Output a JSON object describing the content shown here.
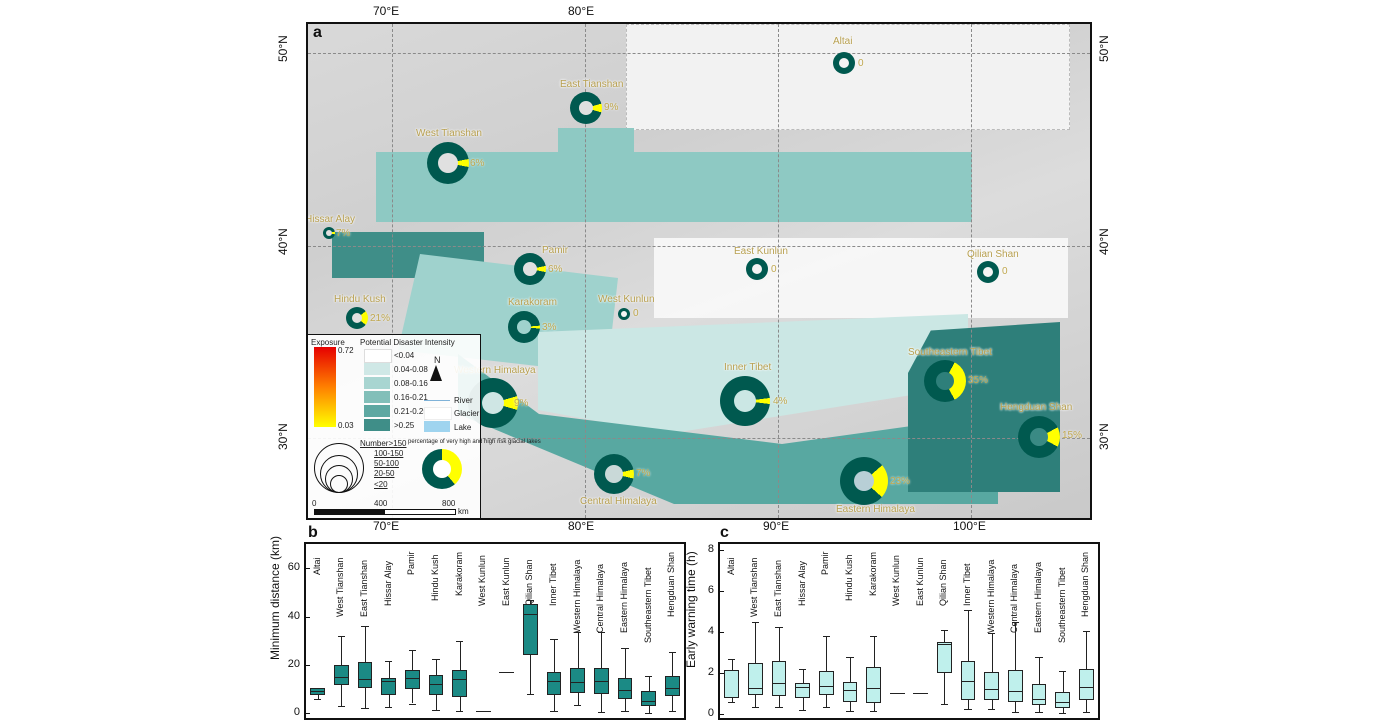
{
  "figure": {
    "panel_a": "a",
    "panel_b": "b",
    "panel_c": "c",
    "lon_ticks": [
      "70°E",
      "80°E",
      "90°E",
      "100°E"
    ],
    "lat_ticks": [
      "50°N",
      "40°N",
      "30°N"
    ],
    "colors": {
      "high_intensity": "#2e7f7a",
      "mid_intensity": "#7fbdb8",
      "low_intensity": "#c9e4e2",
      "donut_dark": "#00594f",
      "donut_yellow": "#ffff00",
      "box_b": "#1b8a85",
      "box_c": "#bff0ec"
    }
  },
  "regions": [
    {
      "name": "Altai",
      "pct": "0"
    },
    {
      "name": "East Tianshan",
      "pct": "9%"
    },
    {
      "name": "West Tianshan",
      "pct": "6%"
    },
    {
      "name": "Hissar Alay",
      "pct": "7%"
    },
    {
      "name": "Pamir",
      "pct": "6%"
    },
    {
      "name": "East Kunlun",
      "pct": "0"
    },
    {
      "name": "Qilian Shan",
      "pct": "0"
    },
    {
      "name": "Hindu Kush",
      "pct": "21%"
    },
    {
      "name": "Karakoram",
      "pct": "3%"
    },
    {
      "name": "West Kunlun",
      "pct": "0"
    },
    {
      "name": "Western Himalaya",
      "pct": "9%"
    },
    {
      "name": "Inner Tibet",
      "pct": "4%"
    },
    {
      "name": "Southeastern Tibet",
      "pct": "35%"
    },
    {
      "name": "Hengduan Shan",
      "pct": "15%"
    },
    {
      "name": "Central Himalaya",
      "pct": "7%"
    },
    {
      "name": "Eastern Himalaya",
      "pct": "23%"
    }
  ],
  "legend": {
    "exposure_title": "Exposure",
    "exposure_max": "0.72",
    "exposure_min": "0.03",
    "intensity_title": "Potential Disaster Intensity",
    "intensity_classes": [
      "<0.04",
      "0.04-0.08",
      "0.08-0.16",
      "0.16-0.21",
      "0.21-0.25",
      ">0.25"
    ],
    "north": "N",
    "river": "River",
    "glacier": "Glacier",
    "lake": "Lake",
    "size_classes": [
      "Number>150",
      "100-150",
      "50-100",
      "20-50",
      "<20"
    ],
    "donut_caption": "percentage of very high and high risk glacial lakes",
    "scale": [
      "0",
      "400",
      "800"
    ],
    "scale_unit": "km"
  },
  "chart_data": [
    {
      "type": "box",
      "panel": "b",
      "title": "",
      "xlabel": "",
      "ylabel": "Minimum distance (km)",
      "ylim": [
        -2,
        70
      ],
      "yticks": [
        0,
        20,
        40,
        60
      ],
      "categories": [
        "Altai",
        "West Tianshan",
        "East Tianshan",
        "Hissar Alay",
        "Pamir",
        "Hindu Kush",
        "Karakoram",
        "West Kunlun",
        "East Kunlun",
        "Qilian Shan",
        "Inner Tibet",
        "Western Himalaya",
        "Central Himalaya",
        "Eastern Himalaya",
        "Southeastern Tibet",
        "Hengduan Shan"
      ],
      "boxes": [
        {
          "min": 6,
          "q1": 7.5,
          "median": 9,
          "q3": 10.5,
          "max": 10.5
        },
        {
          "min": 3,
          "q1": 11.5,
          "median": 15,
          "q3": 20,
          "max": 32
        },
        {
          "min": 2,
          "q1": 10.5,
          "median": 14,
          "q3": 21,
          "max": 36
        },
        {
          "min": 2.5,
          "q1": 7.5,
          "median": 13.5,
          "q3": 14.5,
          "max": 21.5
        },
        {
          "min": 4,
          "q1": 10,
          "median": 14.5,
          "q3": 18,
          "max": 26
        },
        {
          "min": 1.5,
          "q1": 7.5,
          "median": 12,
          "q3": 16,
          "max": 22.5
        },
        {
          "min": 1,
          "q1": 6.5,
          "median": 14,
          "q3": 18,
          "max": 30
        },
        {
          "min": 1,
          "q1": 1,
          "median": 1,
          "q3": 1,
          "max": 1
        },
        {
          "min": 17,
          "q1": 17,
          "median": 17,
          "q3": 17,
          "max": 17
        },
        {
          "min": 8,
          "q1": 24,
          "median": 41,
          "q3": 45,
          "max": 47
        },
        {
          "min": 1,
          "q1": 7.5,
          "median": 13.5,
          "q3": 17,
          "max": 30.5
        },
        {
          "min": 3.5,
          "q1": 8.5,
          "median": 13,
          "q3": 18.5,
          "max": 33.5
        },
        {
          "min": 0.5,
          "q1": 8,
          "median": 13.5,
          "q3": 18.5,
          "max": 33.5
        },
        {
          "min": 1,
          "q1": 6,
          "median": 9.5,
          "q3": 14.5,
          "max": 27
        },
        {
          "min": 0,
          "q1": 3,
          "median": 5,
          "q3": 9,
          "max": 15.5
        },
        {
          "min": 1,
          "q1": 7,
          "median": 10.5,
          "q3": 15.5,
          "max": 25.5
        }
      ]
    },
    {
      "type": "box",
      "panel": "c",
      "title": "",
      "xlabel": "",
      "ylabel": "Early warning time (h)",
      "ylim": [
        -0.2,
        8.3
      ],
      "yticks": [
        0,
        2,
        4,
        6,
        8
      ],
      "categories": [
        "Altai",
        "West Tianshan",
        "East Tianshan",
        "Hissar Alay",
        "Pamir",
        "Hindu Kush",
        "Karakoram",
        "West Kunlun",
        "East Kunlun",
        "Qilian Shan",
        "Inner Tibet",
        "Western Himalaya",
        "Central Himalaya",
        "Eastern Himalaya",
        "Southeastern Tibet",
        "Hengduan Shan"
      ],
      "boxes": [
        {
          "min": 0.6,
          "q1": 0.8,
          "median": 0.85,
          "q3": 2.15,
          "max": 2.7
        },
        {
          "min": 0.35,
          "q1": 0.9,
          "median": 1.25,
          "q3": 2.5,
          "max": 4.5
        },
        {
          "min": 0.35,
          "q1": 0.85,
          "median": 1.5,
          "q3": 2.6,
          "max": 4.25
        },
        {
          "min": 0.2,
          "q1": 0.8,
          "median": 1.3,
          "q3": 1.5,
          "max": 2.2
        },
        {
          "min": 0.35,
          "q1": 0.9,
          "median": 1.35,
          "q3": 2.1,
          "max": 3.8
        },
        {
          "min": 0.15,
          "q1": 0.6,
          "median": 1.15,
          "q3": 1.55,
          "max": 2.8
        },
        {
          "min": 0.15,
          "q1": 0.55,
          "median": 1.25,
          "q3": 2.3,
          "max": 3.8
        },
        {
          "min": 1,
          "q1": 1,
          "median": 1,
          "q3": 1,
          "max": 1
        },
        {
          "min": 1,
          "q1": 1,
          "median": 1,
          "q3": 1,
          "max": 1
        },
        {
          "min": 0.5,
          "q1": 2,
          "median": 3.4,
          "q3": 3.5,
          "max": 4.1
        },
        {
          "min": 0.25,
          "q1": 0.7,
          "median": 1.6,
          "q3": 2.6,
          "max": 5.1
        },
        {
          "min": 0.25,
          "q1": 0.7,
          "median": 1.2,
          "q3": 2.05,
          "max": 3.95
        },
        {
          "min": 0.1,
          "q1": 0.6,
          "median": 1.1,
          "q3": 2.15,
          "max": 4.5
        },
        {
          "min": 0.1,
          "q1": 0.45,
          "median": 0.75,
          "q3": 1.45,
          "max": 2.8
        },
        {
          "min": 0.05,
          "q1": 0.3,
          "median": 0.6,
          "q3": 1.05,
          "max": 2.1
        },
        {
          "min": 0.1,
          "q1": 0.7,
          "median": 1.3,
          "q3": 2.2,
          "max": 4.05
        }
      ]
    }
  ]
}
